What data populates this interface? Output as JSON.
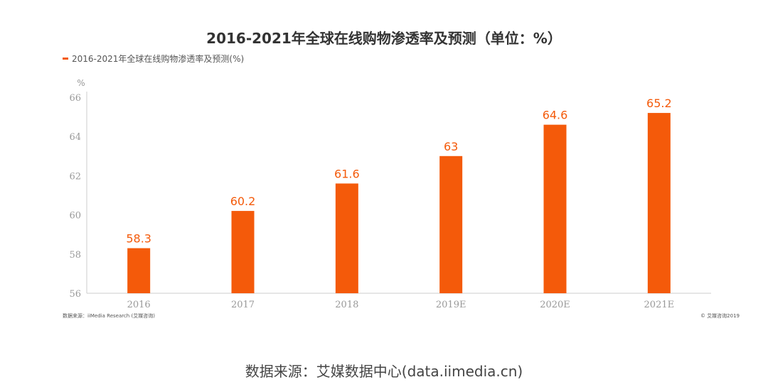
{
  "chart_data": {
    "type": "bar",
    "title": "2016-2021年全球在线购物渗透率及预测（单位：%）",
    "legend_label": "2016-2021年全球在线购物渗透率及预测(%)",
    "ylabel": "%",
    "categories": [
      "2016",
      "2017",
      "2018",
      "2019E",
      "2020E",
      "2021E"
    ],
    "values": [
      58.3,
      60.2,
      61.6,
      63,
      64.6,
      65.2
    ],
    "value_labels": [
      "58.3",
      "60.2",
      "61.6",
      "63",
      "64.6",
      "65.2"
    ],
    "ylim": [
      56,
      66
    ],
    "yticks": [
      "56",
      "58",
      "60",
      "62",
      "64",
      "66"
    ],
    "color": "#f45a0a",
    "grid": false,
    "legend_position": "top-left"
  },
  "source_note": "数据来源：iiMedia Research (艾媒咨询)",
  "copyright": "© 艾媒咨询2019",
  "footer_source": "数据来源：艾媒数据中心(data.iimedia.cn)"
}
